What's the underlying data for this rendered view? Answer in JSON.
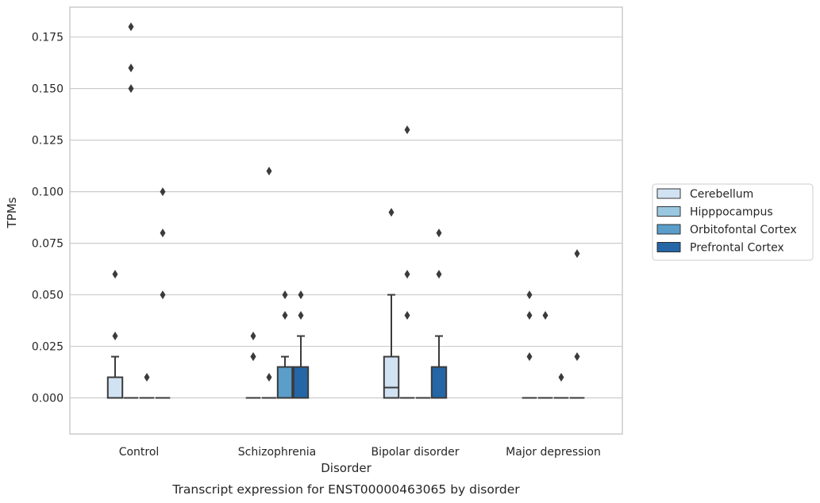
{
  "chart_data": {
    "type": "box",
    "caption": "Transcript expression for ENST00000463065 by disorder",
    "xlabel": "Disorder",
    "ylabel": "TPMs",
    "ylim": [
      -0.0175,
      0.1895
    ],
    "yticks": [
      0.0,
      0.025,
      0.05,
      0.075,
      0.1,
      0.125,
      0.15,
      0.175
    ],
    "ytick_labels": [
      "0.000",
      "0.025",
      "0.050",
      "0.075",
      "0.100",
      "0.125",
      "0.150",
      "0.175"
    ],
    "grid": true,
    "legend_position": "right",
    "categories": [
      "Control",
      "Schizophrenia",
      "Bipolar disorder",
      "Major depression"
    ],
    "series": [
      {
        "name": "Cerebellum",
        "color": "#d1e2f2",
        "boxes": [
          {
            "q1": 0.0,
            "median": 0.0,
            "q3": 0.01,
            "whisker_low": 0.0,
            "whisker_high": 0.02,
            "outliers": [
              0.03,
              0.06
            ]
          },
          {
            "q1": 0.0,
            "median": 0.0,
            "q3": 0.0,
            "whisker_low": 0.0,
            "whisker_high": 0.0,
            "outliers": [
              0.02,
              0.02,
              0.03
            ]
          },
          {
            "q1": 0.0,
            "median": 0.005,
            "q3": 0.02,
            "whisker_low": 0.0,
            "whisker_high": 0.05,
            "outliers": [
              0.09
            ]
          },
          {
            "q1": 0.0,
            "median": 0.0,
            "q3": 0.0,
            "whisker_low": 0.0,
            "whisker_high": 0.0,
            "outliers": [
              0.02,
              0.04,
              0.05
            ]
          }
        ]
      },
      {
        "name": "Hipppocampus",
        "color": "#9ac8e0",
        "boxes": [
          {
            "q1": 0.0,
            "median": 0.0,
            "q3": 0.0,
            "whisker_low": 0.0,
            "whisker_high": 0.0,
            "outliers": [
              0.15,
              0.16,
              0.18
            ]
          },
          {
            "q1": 0.0,
            "median": 0.0,
            "q3": 0.0,
            "whisker_low": 0.0,
            "whisker_high": 0.0,
            "outliers": [
              0.01,
              0.11
            ]
          },
          {
            "q1": 0.0,
            "median": 0.0,
            "q3": 0.0,
            "whisker_low": 0.0,
            "whisker_high": 0.0,
            "outliers": [
              0.04,
              0.06,
              0.13
            ]
          },
          {
            "q1": 0.0,
            "median": 0.0,
            "q3": 0.0,
            "whisker_low": 0.0,
            "whisker_high": 0.0,
            "outliers": [
              0.04
            ]
          }
        ]
      },
      {
        "name": "Orbitofontal Cortex",
        "color": "#5a9ec9",
        "boxes": [
          {
            "q1": 0.0,
            "median": 0.0,
            "q3": 0.0,
            "whisker_low": 0.0,
            "whisker_high": 0.0,
            "outliers": [
              0.01
            ]
          },
          {
            "q1": 0.0,
            "median": 0.0,
            "q3": 0.015,
            "whisker_low": 0.0,
            "whisker_high": 0.02,
            "outliers": [
              0.04,
              0.05
            ]
          },
          {
            "q1": 0.0,
            "median": 0.0,
            "q3": 0.0,
            "whisker_low": 0.0,
            "whisker_high": 0.0,
            "outliers": []
          },
          {
            "q1": 0.0,
            "median": 0.0,
            "q3": 0.0,
            "whisker_low": 0.0,
            "whisker_high": 0.0,
            "outliers": [
              0.01
            ]
          }
        ]
      },
      {
        "name": "Prefrontal Cortex",
        "color": "#2466a6",
        "boxes": [
          {
            "q1": 0.0,
            "median": 0.0,
            "q3": 0.0,
            "whisker_low": 0.0,
            "whisker_high": 0.0,
            "outliers": [
              0.05,
              0.08,
              0.1
            ]
          },
          {
            "q1": 0.0,
            "median": 0.0,
            "q3": 0.015,
            "whisker_low": 0.0,
            "whisker_high": 0.03,
            "outliers": [
              0.04,
              0.05
            ]
          },
          {
            "q1": 0.0,
            "median": 0.0,
            "q3": 0.015,
            "whisker_low": 0.0,
            "whisker_high": 0.03,
            "outliers": [
              0.06,
              0.08
            ]
          },
          {
            "q1": 0.0,
            "median": 0.0,
            "q3": 0.0,
            "whisker_low": 0.0,
            "whisker_high": 0.0,
            "outliers": [
              0.02,
              0.07
            ]
          }
        ]
      }
    ]
  }
}
